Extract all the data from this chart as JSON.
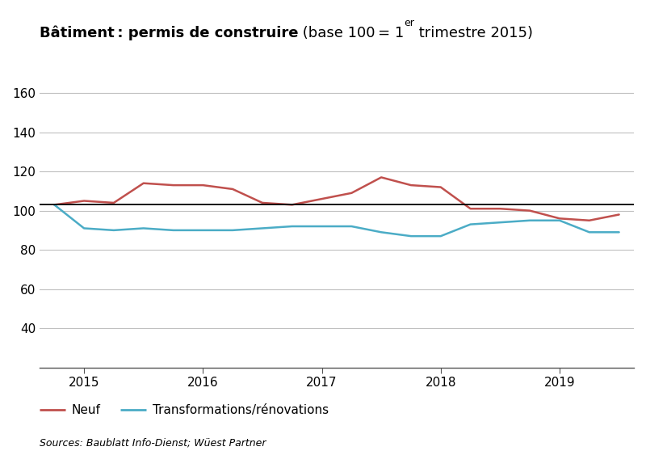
{
  "source": "Sources: Baublatt Info-Dienst; Wüest Partner",
  "legend_neuf": "Neuf",
  "legend_transfo": "Transformations/rénovations",
  "ylim": [
    20,
    170
  ],
  "yticks": [
    40,
    60,
    80,
    100,
    120,
    140,
    160
  ],
  "hline_y": 103,
  "color_neuf": "#c0504d",
  "color_transfo": "#4bacc6",
  "color_hline": "#000000",
  "x": [
    0,
    1,
    2,
    3,
    4,
    5,
    6,
    7,
    8,
    9,
    10,
    11,
    12,
    13,
    14,
    15,
    16,
    17,
    18,
    19
  ],
  "y_neuf": [
    103,
    105,
    104,
    114,
    113,
    113,
    111,
    104,
    103,
    106,
    109,
    117,
    113,
    112,
    101,
    101,
    100,
    96,
    95,
    98
  ],
  "y_transfo": [
    103,
    91,
    90,
    91,
    90,
    90,
    90,
    91,
    92,
    92,
    92,
    89,
    87,
    87,
    93,
    94,
    95,
    95,
    89,
    89
  ],
  "x_tick_positions": [
    1,
    5,
    9,
    13,
    17
  ],
  "x_tick_labels": [
    "2015",
    "2016",
    "2017",
    "2018",
    "2019"
  ],
  "grid_color": "#c0c0c0",
  "background_color": "#ffffff",
  "xlim": [
    -0.5,
    19.5
  ]
}
